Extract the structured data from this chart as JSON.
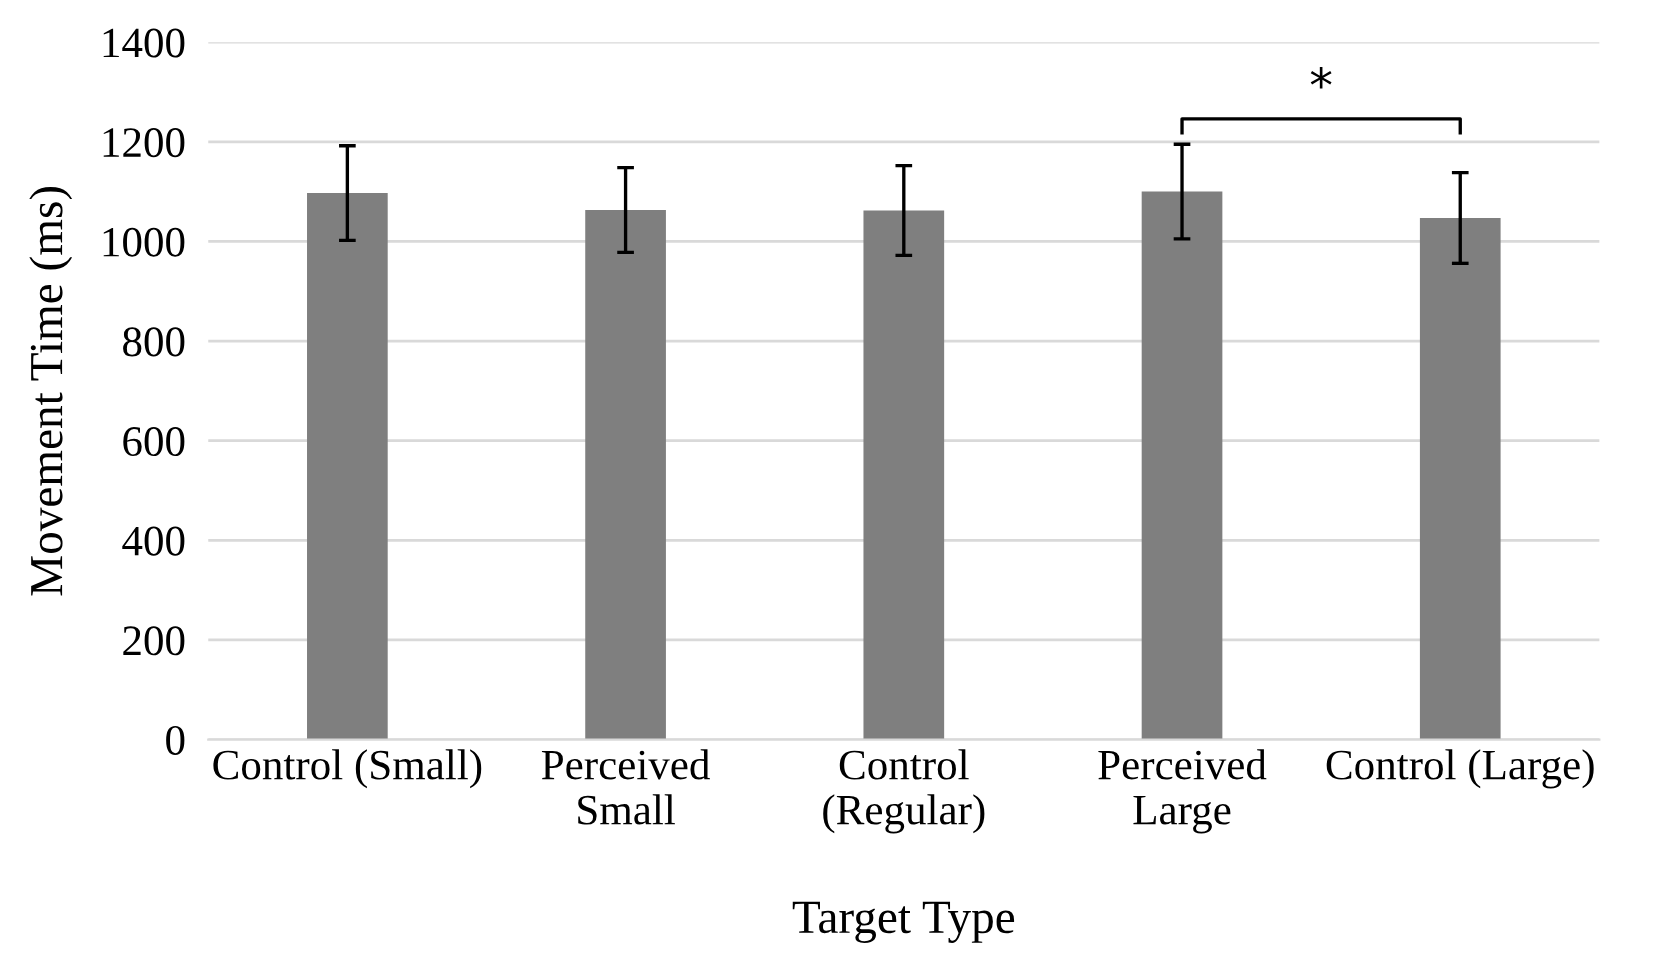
{
  "chart_data": {
    "type": "bar",
    "xlabel": "Target Type",
    "ylabel": "Movement Time (ms)",
    "categories": [
      "Control (Small)",
      "Perceived\nSmall",
      "Control\n(Regular)",
      "Perceived\nLarge",
      "Control (Large)"
    ],
    "values": [
      1097,
      1063,
      1062,
      1100,
      1047
    ],
    "errors": [
      95,
      85,
      90,
      95,
      91
    ],
    "color": "#7f7f7f",
    "ylim": [
      0,
      1400
    ],
    "yticks": [
      0,
      200,
      400,
      600,
      800,
      1000,
      1200,
      1400
    ],
    "grid": "y",
    "annotations": [
      "*"
    ]
  }
}
